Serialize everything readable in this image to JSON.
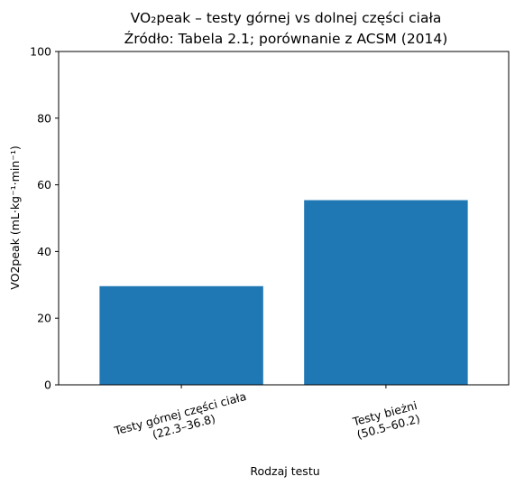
{
  "chart_data": {
    "type": "bar",
    "title": "VO₂peak – testy górnej vs dolnej części ciała",
    "subtitle": "Źródło: Tabela 2.1; porównanie z ACSM (2014)",
    "xlabel": "Rodzaj testu",
    "ylabel": "VO2peak (mL·kg⁻¹·min⁻¹)",
    "ylim": [
      0,
      100
    ],
    "yticks": [
      0,
      20,
      40,
      60,
      80,
      100
    ],
    "categories": [
      [
        "Testy górnej części ciała",
        "(22.3–36.8)"
      ],
      [
        "Testy bieżni",
        "(50.5–60.2)"
      ]
    ],
    "values": [
      29.6,
      55.4
    ],
    "grid": false,
    "legend": "none",
    "bar_color": "#1f77b4"
  }
}
